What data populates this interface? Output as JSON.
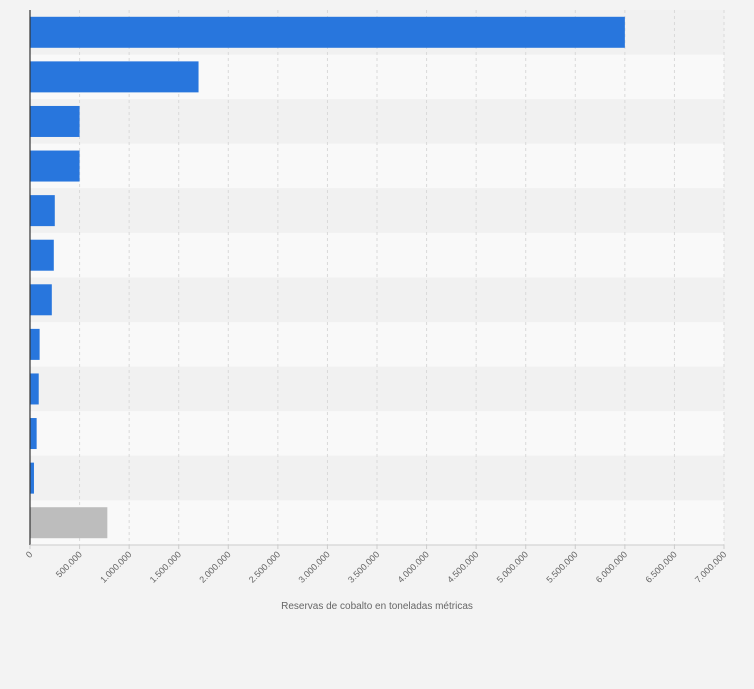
{
  "chart_data": {
    "type": "bar",
    "orientation": "horizontal",
    "categories": [
      "",
      "",
      "",
      "",
      "",
      "",
      "",
      "",
      "",
      "",
      "",
      ""
    ],
    "values": [
      6000000,
      1700000,
      500000,
      500000,
      250000,
      240000,
      220000,
      97000,
      88000,
      67000,
      40000,
      780000
    ],
    "bar_colors": [
      "#2876dd",
      "#2876dd",
      "#2876dd",
      "#2876dd",
      "#2876dd",
      "#2876dd",
      "#2876dd",
      "#2876dd",
      "#2876dd",
      "#2876dd",
      "#2876dd",
      "#bdbdbd"
    ],
    "xlabel": "Reservas de cobalto en toneladas métricas",
    "ylabel": "",
    "xlim": [
      0,
      7000000
    ],
    "x_ticks": [
      0,
      500000,
      1000000,
      1500000,
      2000000,
      2500000,
      3000000,
      3500000,
      4000000,
      4500000,
      5000000,
      5500000,
      6000000,
      6500000,
      7000000
    ],
    "x_tick_labels": [
      "0",
      "500.000",
      "1.000.000",
      "1.500.000",
      "2.000.000",
      "2.500.000",
      "3.000.000",
      "3.500.000",
      "4.000.000",
      "4.500.000",
      "5.000.000",
      "5.500.000",
      "6.000.000",
      "6.500.000",
      "7.000.000"
    ],
    "grid": true,
    "colors": {
      "bar": "#2876dd",
      "other_bar": "#bdbdbd",
      "band_light": "#f9f9f9",
      "band_dark": "#f1f1f1",
      "grid": "#d9d9d9",
      "axis": "#333333",
      "text": "#666666"
    }
  }
}
